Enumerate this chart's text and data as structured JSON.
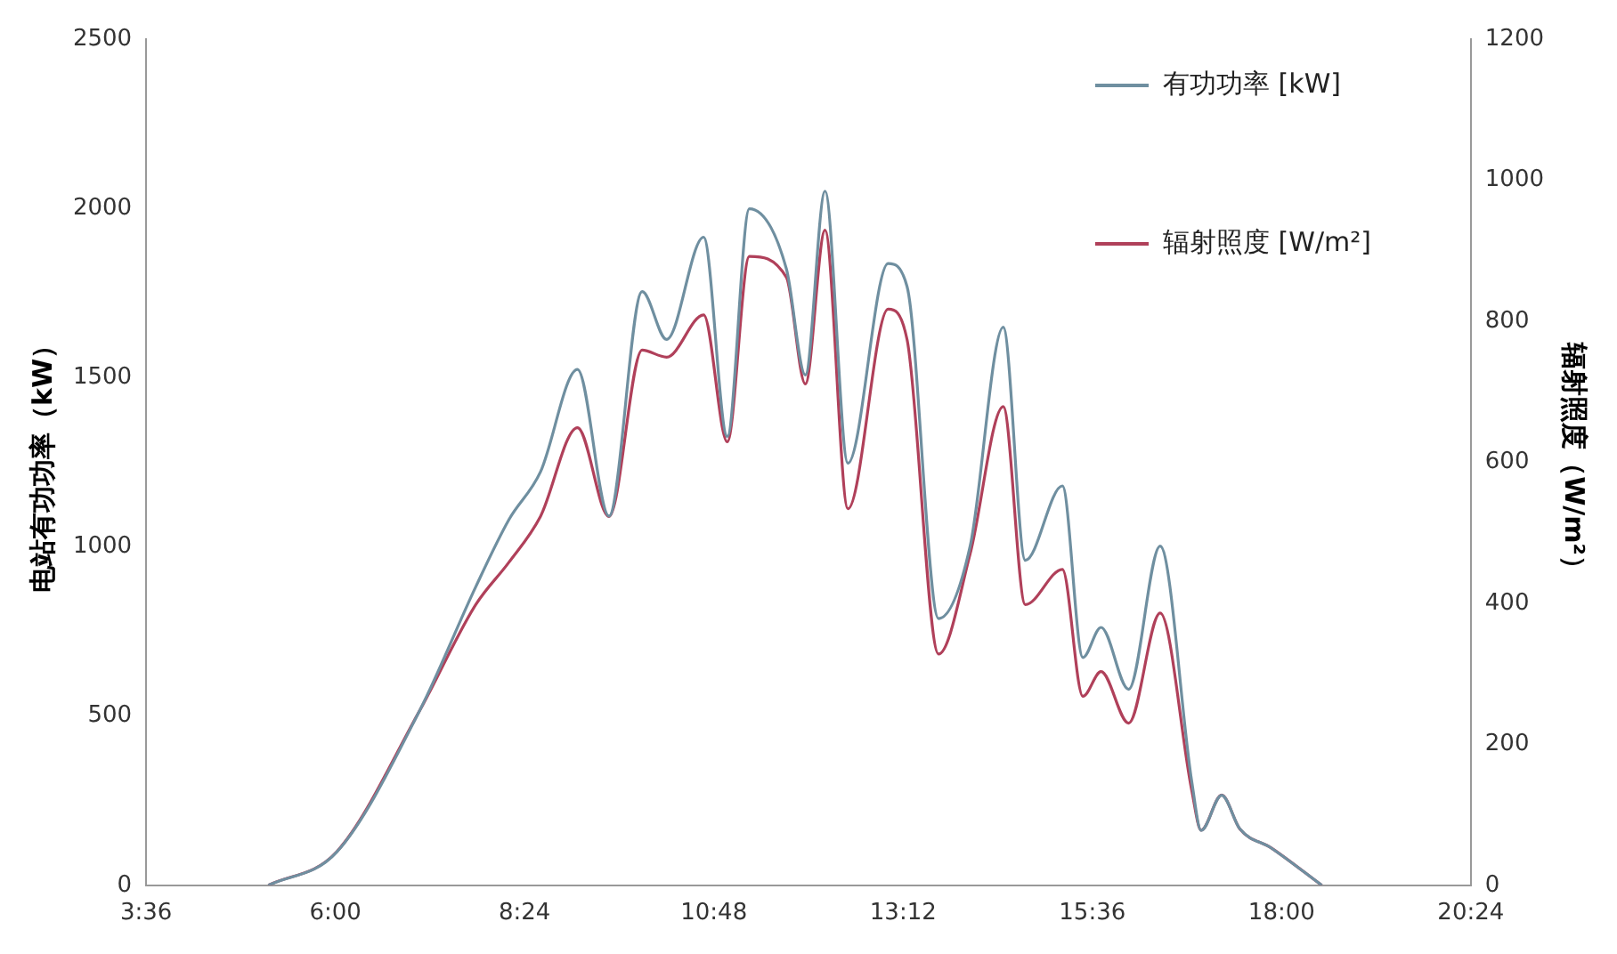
{
  "chart_data": {
    "type": "line",
    "ylabel": "电站有功功率（kW）",
    "y2label": "辐射照度（W/m²）",
    "x": [
      5.15,
      6.02,
      7.07,
      7.78,
      8.2,
      8.6,
      9.07,
      9.47,
      9.89,
      10.2,
      10.67,
      10.97,
      11.25,
      11.72,
      11.96,
      12.21,
      12.5,
      13.01,
      13.25,
      13.65,
      14.05,
      14.47,
      14.75,
      15.22,
      15.48,
      15.71,
      16.06,
      16.46,
      16.86,
      16.98,
      17.24,
      17.47,
      17.87,
      18.51
    ],
    "series": [
      {
        "name": "有功功率 [kW]",
        "color": "#6f8fa0",
        "values": [
          0,
          99,
          517,
          882,
          1080,
          1221,
          1524,
          1091,
          1754,
          1613,
          1915,
          1326,
          1999,
          1821,
          1508,
          2051,
          1247,
          1837,
          1769,
          788,
          1002,
          1649,
          960,
          1180,
          673,
          762,
          579,
          1002,
          308,
          162,
          266,
          167,
          110,
          0
        ]
      },
      {
        "name": "辐射照度 [W/m²]",
        "color": "#b0405a",
        "axis": "y2",
        "values": [
          0,
          48,
          248,
          398,
          458,
          523,
          649,
          523,
          759,
          749,
          809,
          629,
          892,
          862,
          711,
          929,
          534,
          817,
          774,
          328,
          470,
          679,
          398,
          448,
          268,
          303,
          230,
          386,
          135,
          78,
          128,
          80,
          53,
          0
        ]
      }
    ],
    "xlim": [
      3.6,
      20.4
    ],
    "xticks": [
      {
        "value": 3.6,
        "label": "3:36"
      },
      {
        "value": 6,
        "label": "6:00"
      },
      {
        "value": 8.4,
        "label": "8:24"
      },
      {
        "value": 10.8,
        "label": "10:48"
      },
      {
        "value": 13.2,
        "label": "13:12"
      },
      {
        "value": 15.6,
        "label": "15:36"
      },
      {
        "value": 18,
        "label": "18:00"
      },
      {
        "value": 20.4,
        "label": "20:24"
      }
    ],
    "ylim": [
      0,
      2500
    ],
    "yticks": [
      0,
      500,
      1000,
      1500,
      2000,
      2500
    ],
    "y2lim": [
      0,
      1200
    ],
    "y2ticks": [
      0,
      200,
      400,
      600,
      800,
      1000,
      1200
    ],
    "grid": false,
    "legend": "top right",
    "marker": "none",
    "line_style": "solid"
  }
}
